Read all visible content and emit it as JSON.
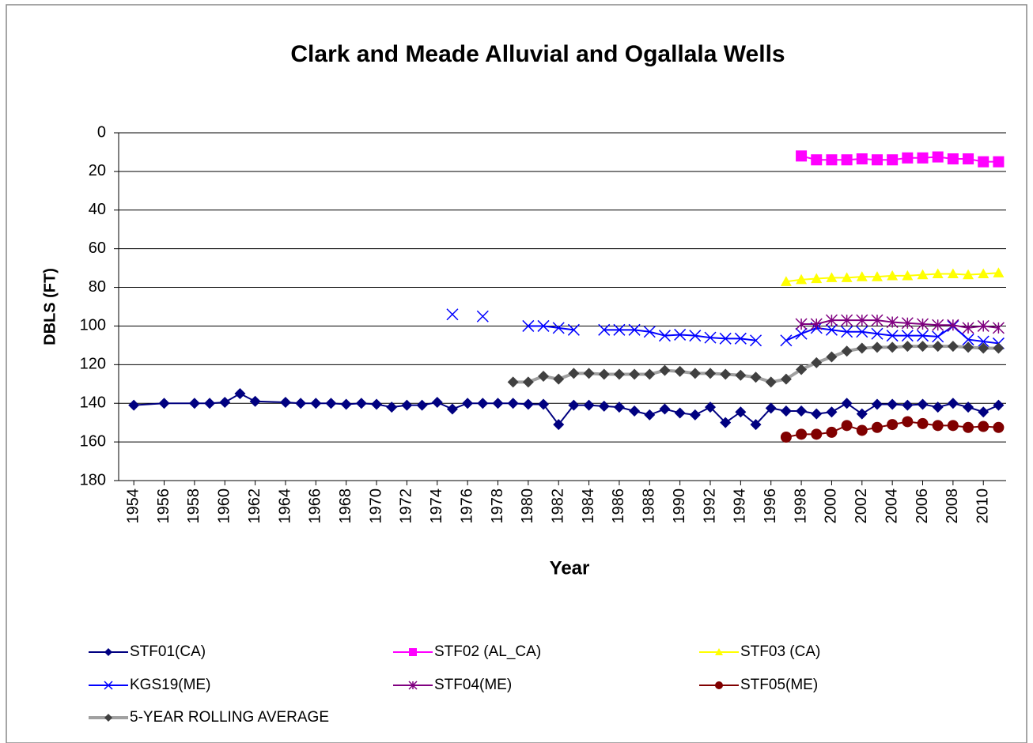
{
  "chart_data": {
    "type": "line",
    "title": "Clark and Meade Alluvial and Ogallala Wells",
    "x_label": "Year",
    "y_label": "DBLS (FT)",
    "xlim": [
      1953,
      2011.5
    ],
    "xticks": [
      1954,
      1956,
      1958,
      1960,
      1962,
      1964,
      1966,
      1968,
      1970,
      1972,
      1974,
      1976,
      1978,
      1980,
      1982,
      1984,
      1986,
      1988,
      1990,
      1992,
      1994,
      1996,
      1998,
      2000,
      2002,
      2004,
      2006,
      2008,
      2010
    ],
    "ylim": [
      0,
      180
    ],
    "yticks": [
      0,
      20,
      40,
      60,
      80,
      100,
      120,
      140,
      160,
      180
    ],
    "y_inverted": true,
    "grid": true,
    "legend": "bottom",
    "series": [
      {
        "name": "STF01(CA)",
        "color": "#000080",
        "marker": "diamond",
        "x": [
          1954,
          1956,
          1958,
          1959,
          1960,
          1961,
          1962,
          1964,
          1965,
          1966,
          1967,
          1968,
          1969,
          1970,
          1971,
          1972,
          1973,
          1974,
          1975,
          1976,
          1977,
          1978,
          1979,
          1980,
          1981,
          1982,
          1983,
          1984,
          1985,
          1986,
          1987,
          1988,
          1989,
          1990,
          1991,
          1992,
          1993,
          1994,
          1995,
          1996,
          1997,
          1998,
          1999,
          2000,
          2001,
          2002,
          2003,
          2004,
          2005,
          2006,
          2007,
          2008,
          2009,
          2010,
          2011
        ],
        "values": [
          141,
          140,
          140,
          140,
          139.5,
          135,
          139,
          139.5,
          140,
          140,
          140,
          140.5,
          140,
          140.5,
          142,
          141,
          141,
          139.5,
          143,
          140,
          140,
          140,
          140,
          140.5,
          140.5,
          151,
          141,
          141,
          141.5,
          142,
          144,
          146,
          143,
          145,
          146,
          142,
          150,
          144.5,
          151,
          142.5,
          144,
          144,
          145.5,
          144.5,
          140,
          145.5,
          140.5,
          140.5,
          141,
          140.5,
          142,
          140,
          142,
          144.5,
          141
        ]
      },
      {
        "name": "STF02 (AL_CA)",
        "color": "#ff00ff",
        "marker": "square",
        "x": [
          1998,
          1999,
          2000,
          2001,
          2002,
          2003,
          2004,
          2005,
          2006,
          2007,
          2008,
          2009,
          2010,
          2011
        ],
        "values": [
          12,
          14,
          14,
          14,
          13.5,
          14,
          14,
          13,
          13,
          12.5,
          13.5,
          13.5,
          15,
          15
        ]
      },
      {
        "name": "STF03 (CA)",
        "color": "#ffff00",
        "marker": "triangle",
        "x": [
          1997,
          1998,
          1999,
          2000,
          2001,
          2002,
          2003,
          2004,
          2005,
          2006,
          2007,
          2008,
          2009,
          2010,
          2011
        ],
        "values": [
          77,
          76,
          75.5,
          75,
          75,
          74.5,
          74.5,
          74,
          74,
          73.5,
          73,
          73,
          73.5,
          73,
          72.5
        ]
      },
      {
        "name": "KGS19(ME)",
        "color": "#0000ff",
        "marker": "x",
        "x": [
          1975,
          1976,
          1977,
          1978,
          1979,
          1980,
          1981,
          1982,
          1983,
          1984,
          1985,
          1986,
          1987,
          1988,
          1989,
          1990,
          1991,
          1992,
          1993,
          1994,
          1995,
          1996,
          1997,
          1998,
          1999,
          2000,
          2001,
          2002,
          2003,
          2004,
          2005,
          2006,
          2007,
          2008,
          2009,
          2010,
          2011
        ],
        "values": [
          94,
          null,
          95,
          null,
          null,
          100,
          100,
          101,
          102,
          null,
          102,
          102,
          102,
          103,
          105,
          104.5,
          105,
          106,
          106.5,
          106.5,
          107.5,
          null,
          107.5,
          104,
          101,
          102,
          103,
          103,
          104,
          105,
          105,
          105,
          105.5,
          100,
          107,
          108,
          109
        ]
      },
      {
        "name": "STF04(ME)",
        "color": "#800080",
        "marker": "star",
        "x": [
          1998,
          1999,
          2000,
          2001,
          2002,
          2003,
          2004,
          2005,
          2006,
          2007,
          2008,
          2009,
          2010,
          2011
        ],
        "values": [
          99,
          99,
          97,
          97,
          97,
          97,
          98,
          98.5,
          99,
          99.5,
          99.5,
          101,
          100,
          101
        ]
      },
      {
        "name": "STF05(ME)",
        "color": "#800000",
        "marker": "circle",
        "x": [
          1997,
          1998,
          1999,
          2000,
          2001,
          2002,
          2003,
          2004,
          2005,
          2006,
          2007,
          2008,
          2009,
          2010,
          2011
        ],
        "values": [
          157.5,
          156,
          156,
          155,
          151.5,
          154,
          152.5,
          151,
          149.5,
          150.5,
          151.5,
          151.5,
          152.5,
          152,
          152.5
        ]
      },
      {
        "name": "5-YEAR ROLLING AVERAGE",
        "color": "#a0a0a0",
        "marker_color": "#404040",
        "marker": "diamond",
        "x": [
          1979,
          1980,
          1981,
          1982,
          1983,
          1984,
          1985,
          1986,
          1987,
          1988,
          1989,
          1990,
          1991,
          1992,
          1993,
          1994,
          1995,
          1996,
          1997,
          1998,
          1999,
          2000,
          2001,
          2002,
          2003,
          2004,
          2005,
          2006,
          2007,
          2008,
          2009,
          2010,
          2011
        ],
        "values": [
          129,
          129,
          126,
          127.5,
          124.5,
          124.5,
          125,
          125,
          125,
          125,
          123,
          123.5,
          124.5,
          124.5,
          125,
          125.5,
          126.5,
          129,
          127.5,
          122.5,
          119,
          116,
          113,
          111.5,
          111,
          111,
          110.5,
          110.5,
          110.5,
          110.5,
          111,
          111.5,
          111.5
        ]
      }
    ]
  }
}
